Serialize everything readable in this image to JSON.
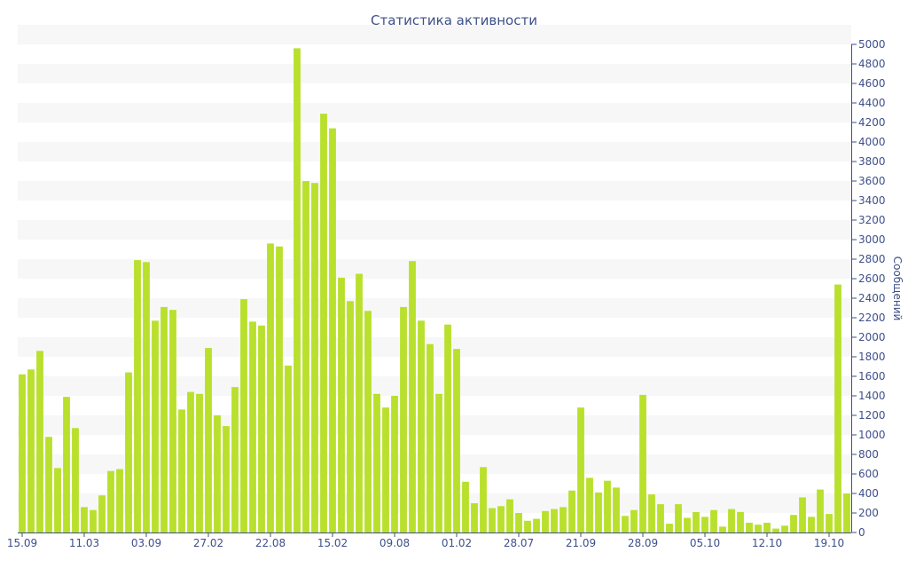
{
  "chart_data": {
    "type": "bar",
    "title": "Статистика активности",
    "xlabel": "",
    "ylabel": "Сообщений",
    "ylim": [
      0,
      5000
    ],
    "ytick_step": 200,
    "y_axis_position": "right",
    "grid": "horizontal alternating bands",
    "bar_color": "#b8e02c",
    "last_bar_color": "#b8e02c",
    "x_tick_labels": [
      {
        "index": 0,
        "label": "15.09"
      },
      {
        "index": 7,
        "label": "11.03"
      },
      {
        "index": 14,
        "label": "03.09"
      },
      {
        "index": 21,
        "label": "27.02"
      },
      {
        "index": 28,
        "label": "22.08"
      },
      {
        "index": 35,
        "label": "15.02"
      },
      {
        "index": 42,
        "label": "09.08"
      },
      {
        "index": 49,
        "label": "01.02"
      },
      {
        "index": 56,
        "label": "28.07"
      },
      {
        "index": 63,
        "label": "21.09"
      },
      {
        "index": 70,
        "label": "28.09"
      },
      {
        "index": 77,
        "label": "05.10"
      },
      {
        "index": 84,
        "label": "12.10"
      },
      {
        "index": 91,
        "label": "19.10"
      }
    ],
    "values": [
      1620,
      1670,
      1860,
      980,
      660,
      1390,
      1070,
      260,
      230,
      380,
      630,
      650,
      1640,
      2790,
      2770,
      2170,
      2310,
      2280,
      1260,
      1440,
      1420,
      1890,
      1200,
      1090,
      1490,
      2390,
      2160,
      2120,
      2960,
      2930,
      1710,
      4960,
      3600,
      3580,
      4290,
      4140,
      2610,
      2370,
      2650,
      2270,
      1420,
      1280,
      1400,
      2310,
      2780,
      2170,
      1930,
      1420,
      2130,
      1880,
      520,
      300,
      670,
      250,
      270,
      340,
      200,
      120,
      140,
      220,
      240,
      260,
      430,
      1280,
      560,
      410,
      530,
      460,
      170,
      230,
      1410,
      390,
      290,
      90,
      290,
      150,
      210,
      160,
      230,
      60,
      240,
      210,
      100,
      80,
      100,
      40,
      70,
      180,
      360,
      160,
      440,
      190,
      2540,
      400
    ]
  }
}
